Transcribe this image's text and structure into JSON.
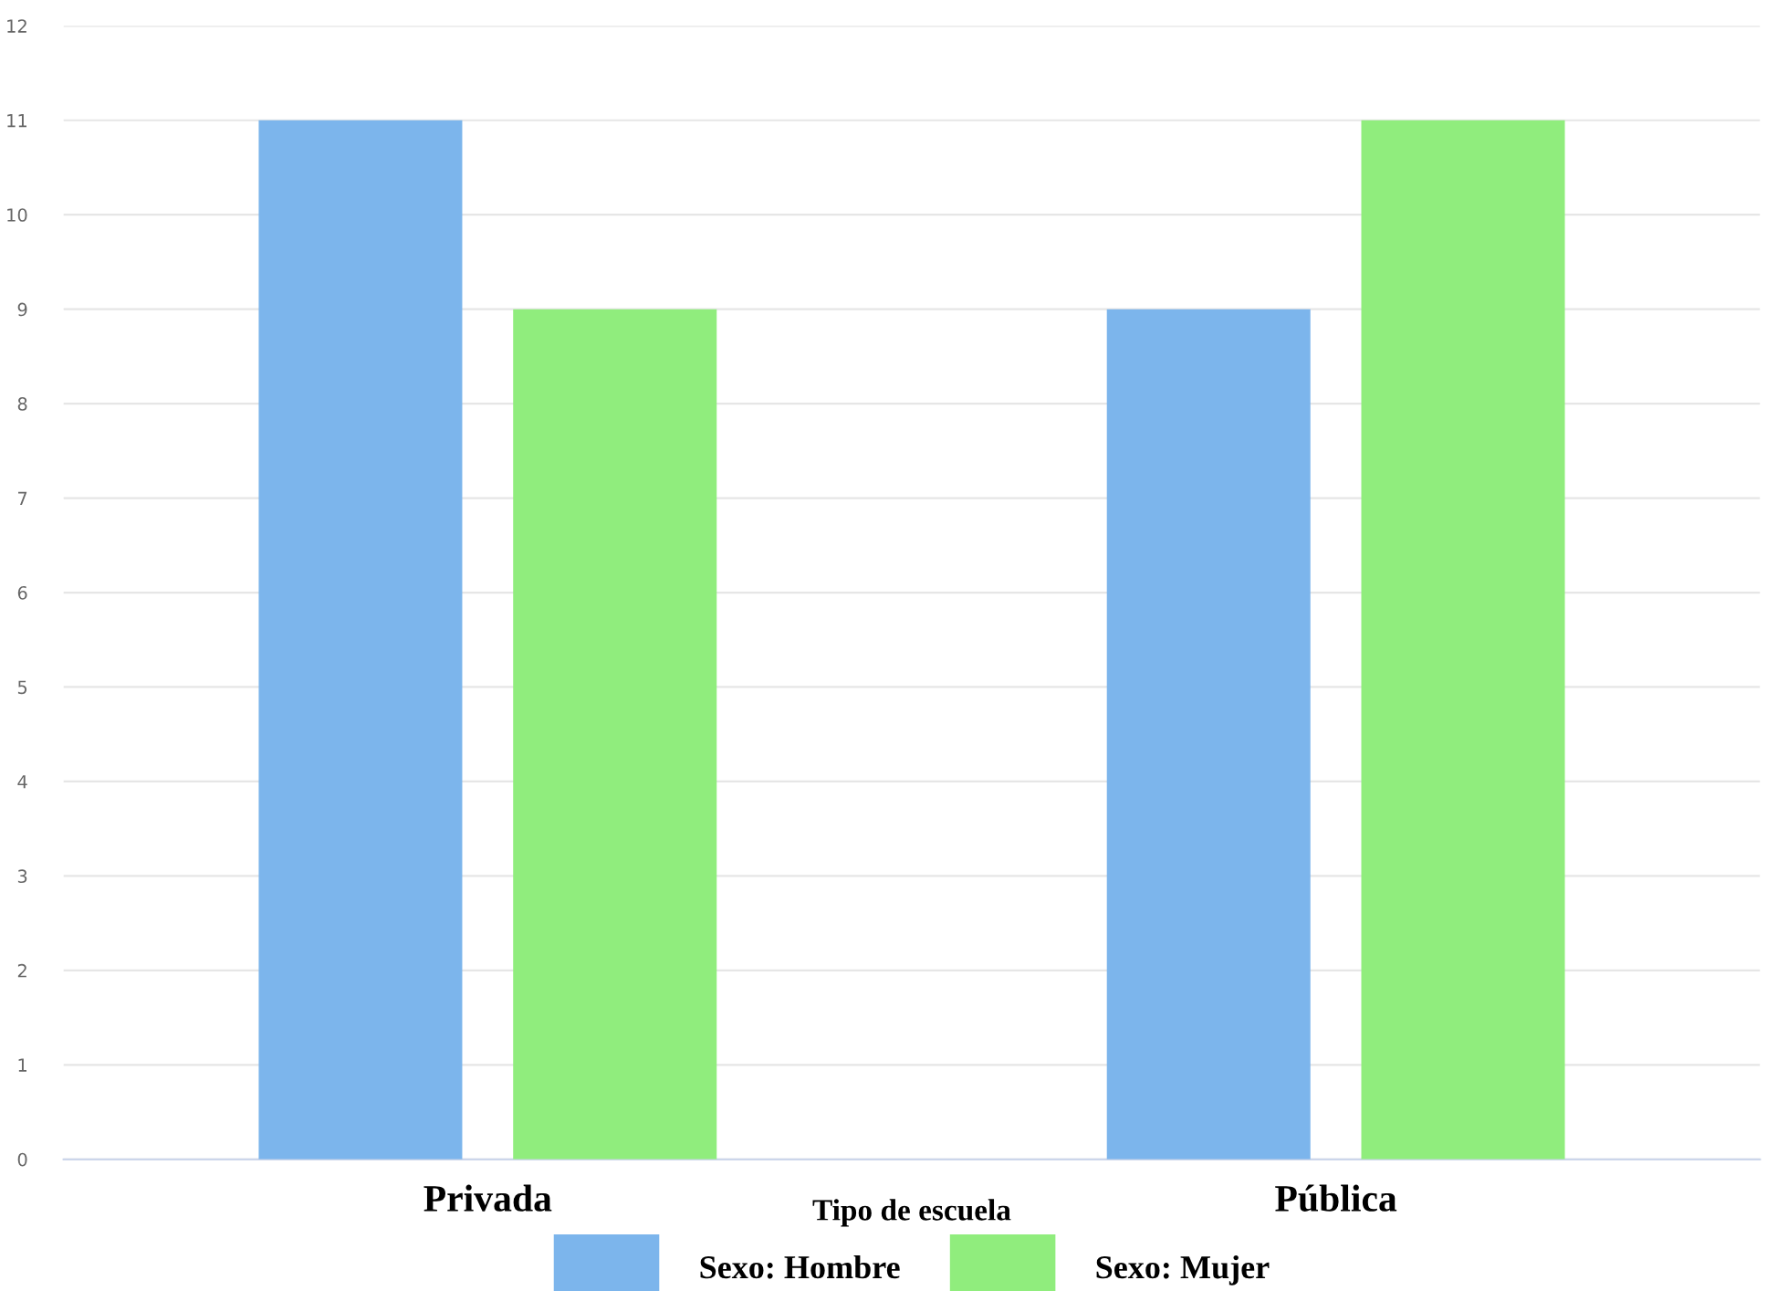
{
  "chart_data": {
    "type": "bar",
    "xlabel": "Tipo de escuela",
    "categories": [
      "Privada",
      "Pública"
    ],
    "series": [
      {
        "name": "Sexo: Hombre",
        "color": "#7cb5ec",
        "values": [
          11,
          9
        ]
      },
      {
        "name": "Sexo: Mujer",
        "color": "#90ed7d",
        "values": [
          9,
          11
        ]
      }
    ],
    "ylim": [
      0,
      12
    ],
    "yticks": [
      0,
      1,
      2,
      3,
      4,
      5,
      6,
      7,
      8,
      9,
      10,
      11,
      12
    ],
    "grid": "y",
    "legend": "bottom"
  }
}
